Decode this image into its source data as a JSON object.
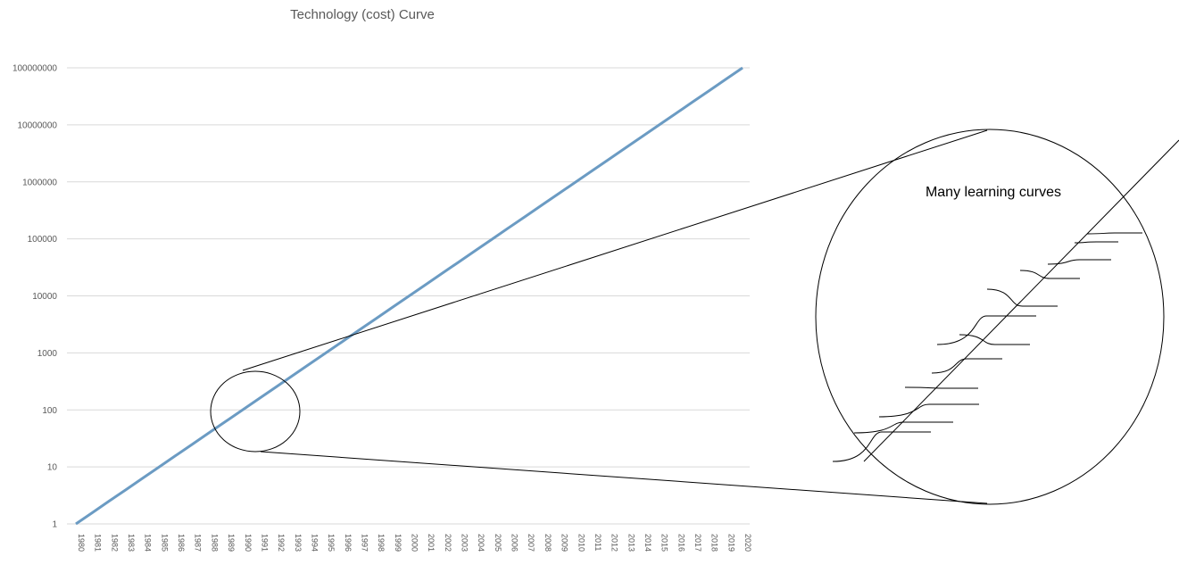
{
  "chart_data": {
    "type": "line",
    "title": "Technology (cost) Curve",
    "xlabel": "",
    "ylabel": "",
    "yscale": "log",
    "ylim": [
      1,
      100000000
    ],
    "grid": true,
    "legend": "none",
    "yticks": [
      "1",
      "10",
      "100",
      "1000",
      "10000",
      "100000",
      "1000000",
      "10000000",
      "100000000"
    ],
    "x": [
      1980,
      1981,
      1982,
      1983,
      1984,
      1985,
      1986,
      1987,
      1988,
      1989,
      1990,
      1991,
      1992,
      1993,
      1994,
      1995,
      1996,
      1997,
      1998,
      1999,
      2000,
      2001,
      2002,
      2003,
      2004,
      2005,
      2006,
      2007,
      2008,
      2009,
      2010,
      2011,
      2012,
      2013,
      2014,
      2015,
      2016,
      2017,
      2018,
      2019,
      2020
    ],
    "series": [
      {
        "color": "#6b9bc3",
        "values": [
          1,
          1.585,
          2.512,
          3.981,
          6.31,
          10,
          15.85,
          25.12,
          39.81,
          63.1,
          100,
          158.5,
          251.2,
          398.1,
          631,
          1000,
          1585,
          2512,
          3981,
          6310,
          10000,
          15850,
          25120,
          39810,
          63100,
          100000,
          158500,
          251200,
          398100,
          631000,
          1000000,
          1585000,
          2512000,
          3981000,
          6310000,
          10000000,
          15850000,
          25120000,
          39810000,
          63100000,
          100000000
        ]
      }
    ],
    "annotation": {
      "text": "Many learning curves",
      "zoom_circle_center": [
        1991,
        100
      ]
    }
  },
  "colors": {
    "grid": "#d9d9d9",
    "line": "#6b9bc3",
    "ink": "#000000",
    "text": "#595959"
  }
}
